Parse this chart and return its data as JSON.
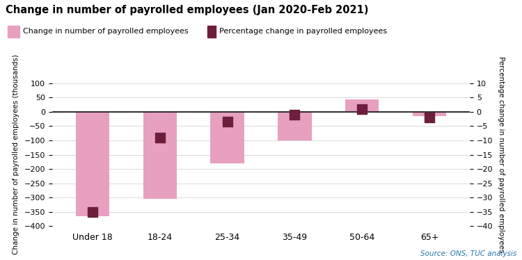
{
  "title": "Change in number of payrolled employees (Jan 2020-Feb 2021)",
  "categories": [
    "Under 18",
    "18-24",
    "25-34",
    "35-49",
    "50-64",
    "65+"
  ],
  "bar_values": [
    -365,
    -305,
    -180,
    -100,
    43,
    -15
  ],
  "pct_values": [
    -35,
    -9,
    -3.5,
    -1.0,
    1.0,
    -2.0
  ],
  "bar_color": "#e8a0c0",
  "dot_color": "#6d1e3c",
  "ylabel_left": "Change in number of payrolled employees (thousands)",
  "ylabel_right": "Percentage change in number of payrolled employees",
  "ylim_left": [
    -400,
    100
  ],
  "ylim_right": [
    -40,
    10
  ],
  "yticks_left": [
    -400,
    -350,
    -300,
    -250,
    -200,
    -150,
    -100,
    -50,
    0,
    50,
    100
  ],
  "yticks_right": [
    -40,
    -35,
    -30,
    -25,
    -20,
    -15,
    -10,
    -5,
    0,
    5,
    10
  ],
  "legend_bar_label": "Change in number of payrolled employees",
  "legend_dot_label": "Percentage change in payrolled employees",
  "source_text": "Source: ONS, TUC analysis",
  "legend_bg_color": "#cce9f0",
  "background_color": "#ffffff",
  "zero_line_color": "#333333",
  "grid_color": "#cccccc",
  "source_color": "#2277aa"
}
